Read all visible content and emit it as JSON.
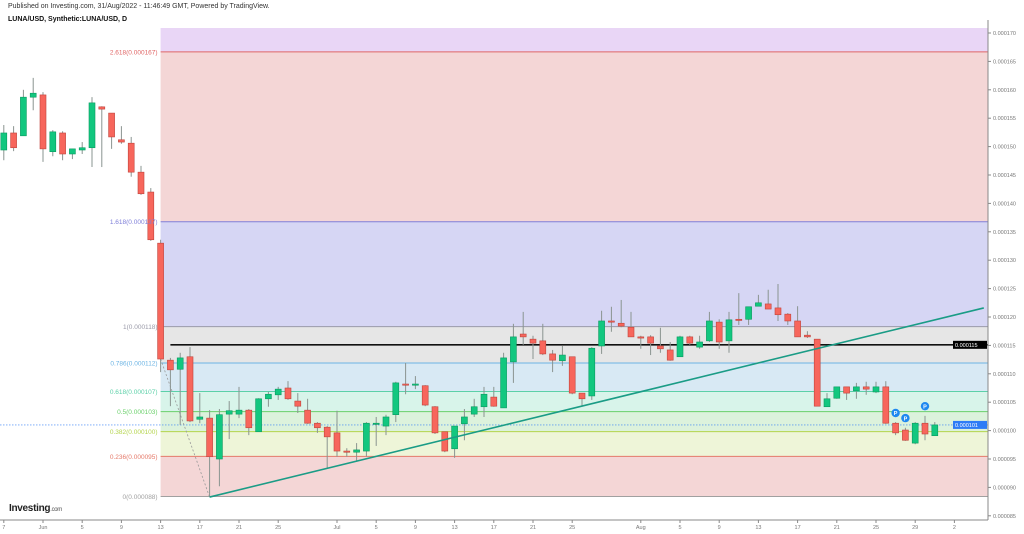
{
  "header": {
    "published": "Published on Investing.com, 31/Aug/2022 - 11:46:49 GMT, Powered by TradingView.",
    "symbol": "LUNA/USD, Synthetic:LUNA/USD, D"
  },
  "logo": {
    "brand": "Investing",
    "suffix": ".com"
  },
  "chart_data": {
    "type": "candlestick",
    "title": "LUNA/USD, Synthetic:LUNA/USD, D",
    "value_unit": "price x 1e-6 USD",
    "ylim": [
      84,
      171
    ],
    "y_ticks": [
      "0.000170",
      "0.000165",
      "0.000160",
      "0.000155",
      "0.000150",
      "0.000145",
      "0.000140",
      "0.000135",
      "0.000130",
      "0.000125",
      "0.000120",
      "0.000115",
      "0.000110",
      "0.000105",
      "0.000100",
      "0.000095",
      "0.000090",
      "0.000085"
    ],
    "x_ticks": [
      {
        "label": "7",
        "date": "05-28"
      },
      {
        "label": "Jun",
        "date": "06-01"
      },
      {
        "label": "5",
        "date": "06-05"
      },
      {
        "label": "9",
        "date": "06-09"
      },
      {
        "label": "13",
        "date": "06-13"
      },
      {
        "label": "17",
        "date": "06-17"
      },
      {
        "label": "21",
        "date": "06-21"
      },
      {
        "label": "25",
        "date": "06-25"
      },
      {
        "label": "Jul",
        "date": "07-01"
      },
      {
        "label": "5",
        "date": "07-05"
      },
      {
        "label": "9",
        "date": "07-09"
      },
      {
        "label": "13",
        "date": "07-13"
      },
      {
        "label": "17",
        "date": "07-17"
      },
      {
        "label": "21",
        "date": "07-21"
      },
      {
        "label": "25",
        "date": "07-25"
      },
      {
        "label": "Aug",
        "date": "08-01"
      },
      {
        "label": "5",
        "date": "08-05"
      },
      {
        "label": "9",
        "date": "08-09"
      },
      {
        "label": "13",
        "date": "08-13"
      },
      {
        "label": "17",
        "date": "08-17"
      },
      {
        "label": "21",
        "date": "08-21"
      },
      {
        "label": "25",
        "date": "08-25"
      },
      {
        "label": "29",
        "date": "08-29"
      },
      {
        "label": "2",
        "date": "09-02"
      }
    ],
    "candle_fields": [
      "date",
      "open",
      "high",
      "low",
      "close"
    ],
    "candles": [
      [
        "05-28",
        149.4,
        153.8,
        147.6,
        152.4
      ],
      [
        "05-29",
        152.4,
        153.6,
        149.2,
        149.8
      ],
      [
        "05-30",
        151.9,
        160.0,
        151.9,
        158.7
      ],
      [
        "05-31",
        158.7,
        162.1,
        156.4,
        159.4
      ],
      [
        "06-01",
        159.1,
        159.6,
        147.3,
        149.6
      ],
      [
        "06-02",
        149.1,
        152.9,
        148.3,
        152.6
      ],
      [
        "06-03",
        152.4,
        152.7,
        147.6,
        148.7
      ],
      [
        "06-04",
        148.7,
        149.6,
        147.8,
        149.6
      ],
      [
        "06-05",
        149.4,
        150.8,
        148.7,
        149.8
      ],
      [
        "06-06",
        149.8,
        158.7,
        146.4,
        157.7
      ],
      [
        "06-07",
        157.0,
        157.1,
        146.4,
        156.6
      ],
      [
        "06-08",
        155.9,
        155.9,
        149.6,
        151.7
      ],
      [
        "06-09",
        151.2,
        153.6,
        150.5,
        150.8
      ],
      [
        "06-10",
        150.6,
        151.7,
        144.7,
        145.5
      ],
      [
        "06-11",
        145.5,
        146.6,
        141.5,
        141.7
      ],
      [
        "06-12",
        142.0,
        142.7,
        133.4,
        133.6
      ],
      [
        "06-13",
        133.0,
        133.6,
        110.3,
        112.6
      ],
      [
        "06-14",
        112.4,
        112.8,
        104.3,
        110.7
      ],
      [
        "06-15",
        110.8,
        113.7,
        101.0,
        112.8
      ],
      [
        "06-16",
        113.0,
        114.7,
        101.5,
        101.7
      ],
      [
        "06-17",
        102.0,
        106.6,
        101.3,
        102.4
      ],
      [
        "06-18",
        102.2,
        103.6,
        88.3,
        95.4
      ],
      [
        "06-19",
        95.0,
        103.8,
        90.2,
        102.8
      ],
      [
        "06-20",
        102.9,
        105.2,
        98.5,
        103.5
      ],
      [
        "06-21",
        102.9,
        107.7,
        102.2,
        103.6
      ],
      [
        "06-22",
        103.6,
        103.8,
        99.2,
        100.5
      ],
      [
        "06-23",
        99.8,
        105.7,
        99.8,
        105.6
      ],
      [
        "06-24",
        105.6,
        106.8,
        104.2,
        106.4
      ],
      [
        "06-25",
        106.3,
        107.7,
        105.4,
        107.3
      ],
      [
        "06-26",
        107.5,
        108.7,
        105.4,
        105.6
      ],
      [
        "06-27",
        105.2,
        106.6,
        103.1,
        104.3
      ],
      [
        "06-28",
        103.6,
        105.6,
        101.2,
        101.3
      ],
      [
        "06-29",
        101.3,
        101.5,
        99.6,
        100.5
      ],
      [
        "06-30",
        100.6,
        100.8,
        93.4,
        98.9
      ],
      [
        "07-01",
        99.6,
        103.5,
        95.4,
        96.4
      ],
      [
        "07-02",
        96.4,
        96.9,
        95.4,
        96.2
      ],
      [
        "07-03",
        96.2,
        97.8,
        94.7,
        96.6
      ],
      [
        "07-04",
        96.4,
        101.5,
        95.4,
        101.3
      ],
      [
        "07-05",
        101.2,
        102.4,
        97.3,
        101.3
      ],
      [
        "07-06",
        100.8,
        102.8,
        99.2,
        102.4
      ],
      [
        "07-07",
        102.8,
        108.6,
        101.5,
        108.4
      ],
      [
        "07-08",
        108.2,
        111.9,
        106.4,
        108.1
      ],
      [
        "07-09",
        108.1,
        109.6,
        107.3,
        108.2
      ],
      [
        "07-10",
        107.9,
        108.0,
        104.3,
        104.5
      ],
      [
        "07-11",
        104.2,
        104.3,
        99.4,
        99.6
      ],
      [
        "07-12",
        99.8,
        99.8,
        96.2,
        96.4
      ],
      [
        "07-13",
        96.8,
        100.8,
        95.2,
        100.8
      ],
      [
        "07-14",
        101.2,
        103.8,
        98.3,
        102.4
      ],
      [
        "07-15",
        102.9,
        105.6,
        102.4,
        104.2
      ],
      [
        "07-16",
        104.2,
        107.7,
        102.4,
        106.4
      ],
      [
        "07-17",
        105.9,
        107.7,
        104.2,
        104.3
      ],
      [
        "07-18",
        104.0,
        113.7,
        104.0,
        112.8
      ],
      [
        "07-19",
        112.1,
        118.8,
        108.4,
        116.5
      ],
      [
        "07-20",
        117.0,
        120.9,
        115.1,
        116.5
      ],
      [
        "07-21",
        116.1,
        116.7,
        112.6,
        115.4
      ],
      [
        "07-22",
        115.8,
        118.8,
        113.3,
        113.5
      ],
      [
        "07-23",
        113.5,
        114.2,
        110.3,
        112.4
      ],
      [
        "07-24",
        112.3,
        114.9,
        111.4,
        113.3
      ],
      [
        "07-25",
        113.0,
        113.0,
        106.4,
        106.6
      ],
      [
        "07-26",
        106.6,
        106.6,
        104.3,
        105.6
      ],
      [
        "07-27",
        106.1,
        114.7,
        105.4,
        114.5
      ],
      [
        "07-28",
        114.9,
        121.1,
        113.5,
        119.3
      ],
      [
        "07-29",
        119.3,
        121.8,
        117.4,
        119.2
      ],
      [
        "07-30",
        118.9,
        123.0,
        118.2,
        118.4
      ],
      [
        "07-31",
        118.2,
        120.9,
        116.5,
        116.5
      ],
      [
        "08-01",
        116.5,
        116.7,
        114.4,
        116.4
      ],
      [
        "08-02",
        116.5,
        116.8,
        113.3,
        115.4
      ],
      [
        "08-03",
        114.9,
        118.1,
        113.7,
        114.4
      ],
      [
        "08-04",
        114.2,
        115.6,
        112.3,
        112.4
      ],
      [
        "08-05",
        113.0,
        116.7,
        113.0,
        116.5
      ],
      [
        "08-06",
        116.5,
        116.7,
        115.1,
        115.4
      ],
      [
        "08-07",
        114.7,
        116.7,
        114.4,
        115.6
      ],
      [
        "08-08",
        115.8,
        120.9,
        115.6,
        119.3
      ],
      [
        "08-09",
        119.1,
        119.6,
        114.4,
        115.6
      ],
      [
        "08-10",
        115.8,
        120.9,
        113.7,
        119.5
      ],
      [
        "08-11",
        119.6,
        124.2,
        118.6,
        119.5
      ],
      [
        "08-12",
        119.6,
        121.8,
        118.6,
        121.8
      ],
      [
        "08-13",
        121.9,
        123.9,
        121.9,
        122.5
      ],
      [
        "08-14",
        122.3,
        124.8,
        121.4,
        121.4
      ],
      [
        "08-15",
        121.6,
        125.8,
        119.3,
        120.4
      ],
      [
        "08-16",
        120.5,
        120.7,
        118.6,
        119.3
      ],
      [
        "08-17",
        119.3,
        121.9,
        116.5,
        116.5
      ],
      [
        "08-18",
        116.8,
        117.5,
        116.3,
        116.5
      ],
      [
        "08-19",
        116.1,
        116.1,
        104.3,
        104.3
      ],
      [
        "08-20",
        104.2,
        106.6,
        104.2,
        105.6
      ],
      [
        "08-21",
        105.7,
        107.7,
        105.6,
        107.7
      ],
      [
        "08-22",
        107.7,
        107.7,
        105.4,
        106.6
      ],
      [
        "08-23",
        107.0,
        108.4,
        105.6,
        107.7
      ],
      [
        "08-24",
        107.7,
        108.6,
        106.3,
        107.3
      ],
      [
        "08-25",
        106.8,
        108.6,
        106.6,
        107.7
      ],
      [
        "08-26",
        107.7,
        108.7,
        101.2,
        101.3
      ],
      [
        "08-27",
        101.3,
        101.5,
        99.2,
        99.6
      ],
      [
        "08-28",
        100.1,
        100.5,
        98.2,
        98.3
      ],
      [
        "08-29",
        97.8,
        101.5,
        97.6,
        101.3
      ],
      [
        "08-30",
        101.3,
        102.6,
        98.3,
        99.4
      ],
      [
        "08-31",
        99.1,
        101.5,
        99.1,
        101.0
      ]
    ],
    "fibonacci": {
      "low": 88.4,
      "high": 118.3,
      "start_date": "06-13",
      "top_band_color": "#e9d6f6",
      "levels": [
        {
          "ratio": 2.618,
          "label": "2.618(0.000167)",
          "line": "#e06666",
          "band_below": "#f4d6d6"
        },
        {
          "ratio": 1.618,
          "label": "1.618(0.000137)",
          "line": "#7e7ed8",
          "band_below": "#d6d6f4"
        },
        {
          "ratio": 1,
          "label": "1(0.000118)",
          "line": "#9a9aa8",
          "band_below": "#e6e6e6"
        },
        {
          "ratio": 0.786,
          "label": "0.786(0.000112)",
          "line": "#6cb4e4",
          "band_below": "#d8e9f4"
        },
        {
          "ratio": 0.618,
          "label": "0.618(0.000107)",
          "line": "#5cd0a8",
          "band_below": "#d8f4ea"
        },
        {
          "ratio": 0.5,
          "label": "0.5(0.000103)",
          "line": "#6ad06a",
          "band_below": "#dcf2dc"
        },
        {
          "ratio": 0.382,
          "label": "0.382(0.000100)",
          "line": "#b4d44c",
          "band_below": "#eef5d8"
        },
        {
          "ratio": 0.236,
          "label": "0.236(0.000095)",
          "line": "#e57a6a",
          "band_below": "#f4d6d6"
        },
        {
          "ratio": 0,
          "label": "0(0.000088)",
          "line": "#a0a0a0",
          "band_below": null
        }
      ]
    },
    "fib_anchor_line": {
      "from": [
        "06-13",
        112.6
      ],
      "to": [
        "06-18",
        88.3
      ]
    },
    "trend_line": {
      "from": [
        "06-18",
        88.3
      ],
      "to": [
        "09-05",
        121.6
      ],
      "color": "#1a9c86"
    },
    "horizontal_line": {
      "from_date": "06-14",
      "value": 115.1,
      "label": "0.000115"
    },
    "current_price": {
      "value": 101.0,
      "label": "0.000101",
      "color": "#2e7cf6"
    },
    "markers": [
      {
        "date": "08-27",
        "value": 103.1,
        "label": "P"
      },
      {
        "date": "08-28",
        "value": 102.2,
        "label": "P"
      },
      {
        "date": "08-30",
        "value": 104.3,
        "label": "P"
      }
    ],
    "colors": {
      "up": "#12c77f",
      "down": "#f7665c",
      "wick": "#8a9490"
    }
  }
}
